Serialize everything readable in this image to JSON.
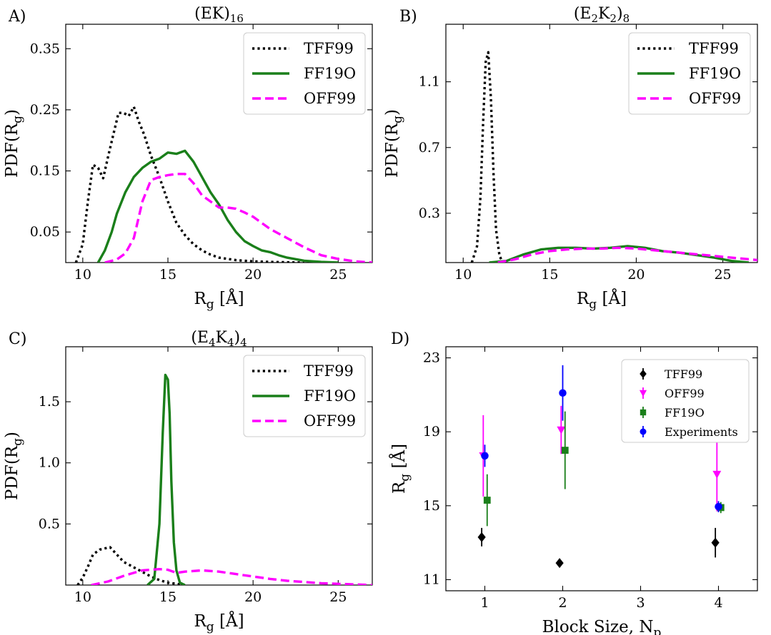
{
  "chart_data": [
    {
      "panel": "A)",
      "type": "line",
      "title": "(EK)",
      "title_sub": "16",
      "xlabel": "R",
      "xlabel_sub": "g",
      "xlabel_unit": "[Å]",
      "ylabel": "PDF(R",
      "ylabel_sub": "g",
      "ylabel_end": ")",
      "xlim": [
        9,
        27
      ],
      "ylim": [
        0,
        0.39
      ],
      "xticks": [
        10,
        15,
        20,
        25
      ],
      "yticks": [
        0.05,
        0.15,
        0.25,
        0.35
      ],
      "ytick_labels": [
        "0.05",
        "0.15",
        "0.25",
        "0.35"
      ],
      "legend_position": "top-right",
      "series": [
        {
          "name": "TFF99",
          "style": "dotted",
          "color": "#000000",
          "x": [
            9.6,
            10.0,
            10.3,
            10.6,
            10.9,
            11.2,
            11.5,
            11.8,
            12.1,
            12.4,
            12.7,
            13.0,
            13.3,
            13.6,
            14.0,
            14.5,
            15.0,
            15.5,
            16.0,
            16.5,
            17.0,
            17.5,
            18.0,
            19.0,
            20.0,
            21.0,
            22.0,
            23.0
          ],
          "y": [
            0.0,
            0.03,
            0.1,
            0.16,
            0.155,
            0.138,
            0.175,
            0.21,
            0.245,
            0.245,
            0.24,
            0.255,
            0.23,
            0.21,
            0.175,
            0.14,
            0.1,
            0.065,
            0.045,
            0.03,
            0.02,
            0.013,
            0.008,
            0.004,
            0.002,
            0.001,
            0.0005,
            0.0
          ]
        },
        {
          "name": "FF19O",
          "style": "solid",
          "color": "#1a7f1a",
          "x": [
            10.9,
            11.3,
            11.7,
            12.0,
            12.5,
            13.0,
            13.5,
            14.0,
            14.5,
            15.0,
            15.5,
            16.0,
            16.5,
            17.0,
            17.5,
            18.0,
            18.5,
            19.0,
            19.5,
            20.0,
            20.5,
            21.0,
            21.5,
            22.0,
            23.0,
            24.0,
            25.0
          ],
          "y": [
            0.0,
            0.02,
            0.05,
            0.08,
            0.115,
            0.14,
            0.155,
            0.165,
            0.17,
            0.18,
            0.178,
            0.183,
            0.165,
            0.14,
            0.115,
            0.095,
            0.07,
            0.05,
            0.035,
            0.027,
            0.02,
            0.017,
            0.012,
            0.008,
            0.003,
            0.001,
            0.0
          ]
        },
        {
          "name": "OFF99",
          "style": "dashed",
          "color": "#ff00ff",
          "x": [
            11.3,
            12.0,
            12.5,
            13.0,
            13.5,
            14.0,
            14.5,
            15.0,
            15.5,
            16.0,
            16.5,
            17.0,
            17.5,
            18.0,
            18.5,
            19.0,
            19.5,
            20.0,
            21.0,
            22.0,
            23.0,
            24.0,
            25.0,
            26.0,
            27.0
          ],
          "y": [
            0.0,
            0.005,
            0.015,
            0.04,
            0.1,
            0.135,
            0.14,
            0.143,
            0.145,
            0.145,
            0.13,
            0.11,
            0.1,
            0.09,
            0.09,
            0.088,
            0.082,
            0.075,
            0.055,
            0.04,
            0.025,
            0.012,
            0.006,
            0.002,
            0.0
          ]
        }
      ]
    },
    {
      "panel": "B)",
      "type": "line",
      "title": "(E",
      "title_sub": "2",
      "title_mid": "K",
      "title_sub2": "2",
      "title_end": ")",
      "title_sub3": "8",
      "xlabel": "R",
      "xlabel_sub": "g",
      "xlabel_unit": "[Å]",
      "ylabel": "PDF(R",
      "ylabel_sub": "g",
      "ylabel_end": ")",
      "xlim": [
        9,
        27
      ],
      "ylim": [
        0,
        1.45
      ],
      "xticks": [
        10,
        15,
        20,
        25
      ],
      "yticks": [
        0.3,
        0.7,
        1.1
      ],
      "ytick_labels": [
        "0.3",
        "0.7",
        "1.1"
      ],
      "legend_position": "top-right",
      "series": [
        {
          "name": "TFF99",
          "style": "dotted",
          "color": "#000000",
          "x": [
            10.5,
            10.8,
            11.0,
            11.15,
            11.3,
            11.45,
            11.6,
            11.75,
            11.9,
            12.1,
            12.3
          ],
          "y": [
            0.0,
            0.1,
            0.4,
            0.85,
            1.22,
            1.28,
            1.0,
            0.55,
            0.2,
            0.04,
            0.0
          ]
        },
        {
          "name": "FF19O",
          "style": "solid",
          "color": "#1a7f1a",
          "x": [
            11.5,
            12.5,
            13.5,
            14.5,
            15.5,
            16.5,
            17.5,
            18.5,
            19.5,
            20.5,
            21.5,
            22.5,
            23.5,
            24.5,
            25.5,
            26.5
          ],
          "y": [
            0.0,
            0.01,
            0.05,
            0.08,
            0.09,
            0.09,
            0.085,
            0.09,
            0.1,
            0.09,
            0.07,
            0.06,
            0.045,
            0.03,
            0.01,
            0.0
          ]
        },
        {
          "name": "OFF99",
          "style": "dashed",
          "color": "#ff00ff",
          "x": [
            12.0,
            13.0,
            14.0,
            15.0,
            16.0,
            17.0,
            18.0,
            19.0,
            20.0,
            21.0,
            22.0,
            23.0,
            24.0,
            25.0,
            26.0,
            27.0
          ],
          "y": [
            0.0,
            0.02,
            0.05,
            0.07,
            0.08,
            0.085,
            0.085,
            0.09,
            0.085,
            0.075,
            0.065,
            0.055,
            0.045,
            0.035,
            0.025,
            0.015
          ]
        }
      ]
    },
    {
      "panel": "C)",
      "type": "line",
      "title": "(E",
      "title_sub": "4",
      "title_mid": "K",
      "title_sub2": "4",
      "title_end": ")",
      "title_sub3": "4",
      "xlabel": "R",
      "xlabel_sub": "g",
      "xlabel_unit": "[Å]",
      "ylabel": "PDF(R",
      "ylabel_sub": "g",
      "ylabel_end": ")",
      "xlim": [
        9,
        27
      ],
      "ylim": [
        0,
        1.95
      ],
      "xticks": [
        10,
        15,
        20,
        25
      ],
      "yticks": [
        0.5,
        1.0,
        1.5
      ],
      "ytick_labels": [
        "0.5",
        "1.0",
        "1.5"
      ],
      "legend_position": "top-right",
      "series": [
        {
          "name": "TFF99",
          "style": "dotted",
          "color": "#000000",
          "x": [
            9.7,
            10.0,
            10.3,
            10.6,
            11.0,
            11.3,
            11.6,
            12.0,
            12.4,
            12.8,
            13.2,
            13.6,
            14.0,
            14.5,
            15.0,
            15.5,
            16.0
          ],
          "y": [
            0.0,
            0.06,
            0.15,
            0.25,
            0.29,
            0.3,
            0.31,
            0.25,
            0.19,
            0.16,
            0.13,
            0.1,
            0.07,
            0.04,
            0.02,
            0.01,
            0.0
          ]
        },
        {
          "name": "FF19O",
          "style": "solid",
          "color": "#1a7f1a",
          "x": [
            13.8,
            14.2,
            14.5,
            14.7,
            14.85,
            15.0,
            15.1,
            15.2,
            15.35,
            15.5,
            15.7,
            16.0
          ],
          "y": [
            0.0,
            0.05,
            0.5,
            1.25,
            1.72,
            1.68,
            1.4,
            0.85,
            0.35,
            0.12,
            0.02,
            0.0
          ]
        },
        {
          "name": "OFF99",
          "style": "dashed",
          "color": "#ff00ff",
          "x": [
            10.5,
            11.5,
            12.5,
            13.5,
            14.5,
            15.0,
            15.5,
            16.0,
            17.0,
            18.0,
            19.0,
            20.0,
            21.0,
            22.0,
            23.0,
            24.0,
            25.0,
            26.0,
            27.0
          ],
          "y": [
            0.0,
            0.03,
            0.08,
            0.12,
            0.13,
            0.125,
            0.1,
            0.11,
            0.12,
            0.11,
            0.09,
            0.07,
            0.05,
            0.035,
            0.025,
            0.015,
            0.01,
            0.005,
            0.0
          ]
        }
      ]
    },
    {
      "panel": "D)",
      "type": "scatter",
      "title": "",
      "xlabel": "Block Size, N",
      "xlabel_sub": "p",
      "ylabel": "R",
      "ylabel_sub": "g",
      "ylabel_unit": "[Å]",
      "xlim": [
        0.5,
        4.5
      ],
      "ylim": [
        10.4,
        23.6
      ],
      "xticks": [
        1,
        2,
        3,
        4
      ],
      "yticks": [
        11,
        15,
        19,
        23
      ],
      "legend_position": "top-right",
      "series": [
        {
          "name": "TFF99",
          "marker": "diamond",
          "color": "#000000",
          "x": [
            0.96,
            1.96,
            3.96
          ],
          "y": [
            13.3,
            11.9,
            13.0
          ],
          "err": [
            0.5,
            0.0,
            0.8
          ]
        },
        {
          "name": "OFF99",
          "marker": "triangle-down",
          "color": "#ff00ff",
          "x": [
            0.98,
            1.98,
            3.98
          ],
          "y": [
            17.7,
            19.1,
            16.7
          ],
          "err": [
            2.2,
            1.3,
            2.0
          ]
        },
        {
          "name": "FF19O",
          "marker": "square",
          "color": "#1a7f1a",
          "x": [
            1.03,
            2.03,
            4.03
          ],
          "y": [
            15.3,
            18.0,
            14.9
          ],
          "err": [
            1.4,
            2.1,
            0.3
          ]
        },
        {
          "name": "Experiments",
          "marker": "circle",
          "color": "#0000ff",
          "x": [
            1.0,
            2.0,
            4.0
          ],
          "y": [
            17.7,
            21.1,
            14.95
          ],
          "err": [
            0.6,
            1.5,
            0.3
          ]
        }
      ]
    }
  ]
}
